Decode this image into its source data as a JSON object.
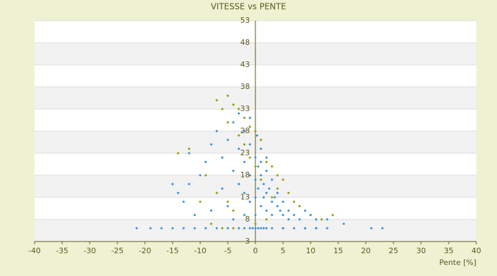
{
  "chart_data": {
    "type": "scatter",
    "title": "VITESSE vs PENTE",
    "x_label": "Pente [%]",
    "xlim": [
      -40,
      40
    ],
    "xticks": [
      -40,
      -35,
      -30,
      -25,
      -20,
      -15,
      -10,
      -5,
      0,
      5,
      10,
      15,
      20,
      25,
      30,
      35,
      40
    ],
    "ylim": [
      3,
      53
    ],
    "yticks": [
      3,
      8,
      13,
      18,
      23,
      28,
      33,
      38,
      43,
      48,
      53
    ],
    "grid": true,
    "alternating_bands": true,
    "series": [
      {
        "color": "#999900",
        "x": [
          -7,
          -6,
          -5,
          -4,
          -3,
          -2,
          -1,
          0,
          -3,
          -5,
          -14,
          -12,
          -9,
          -7,
          -5,
          -4,
          -3,
          -1,
          1,
          2,
          3,
          4,
          5,
          6,
          4,
          3,
          7,
          8,
          10,
          12,
          14,
          -10,
          -8,
          -6,
          -4,
          0,
          2,
          5,
          9,
          11,
          0,
          1,
          -2
        ],
        "y": [
          35,
          33,
          36,
          34,
          33,
          31,
          29,
          28,
          27,
          30,
          23,
          24,
          18,
          14,
          12,
          10,
          16,
          22,
          26,
          21,
          20,
          18,
          17,
          14,
          15,
          13,
          12,
          11,
          9,
          8,
          9,
          12,
          7,
          6,
          6,
          7,
          8,
          6,
          6,
          6,
          20,
          17,
          25
        ]
      },
      {
        "color": "#3a8fd9",
        "x": [
          -21.5,
          -19,
          -17,
          -15,
          -13,
          -11,
          -9,
          -7,
          -5,
          -3,
          -2,
          -1,
          -0.5,
          0,
          0.5,
          1,
          1.5,
          2,
          3,
          5,
          7,
          9,
          11,
          13,
          16,
          21,
          23,
          -14,
          -13,
          -12,
          -10,
          -9,
          -8,
          -7,
          -6,
          -5,
          -4,
          -3,
          -3,
          -2,
          -2,
          -1,
          -1,
          -1,
          0,
          0,
          0,
          0,
          0.5,
          0.5,
          1,
          1,
          1,
          1.5,
          1.5,
          2,
          2,
          2,
          2.5,
          3,
          3,
          3,
          3.5,
          4,
          4,
          4.5,
          5,
          5,
          6,
          6,
          7,
          8,
          9,
          10,
          11,
          13,
          -11,
          -8,
          -6,
          -5,
          -4,
          -2,
          -15,
          -12,
          -4,
          -2,
          0.3,
          1,
          2,
          -1,
          -3
        ],
        "y": [
          6,
          6,
          6,
          6,
          6,
          6,
          6,
          6,
          6,
          6,
          6,
          6,
          6,
          6,
          6,
          6,
          6,
          6,
          6,
          6,
          6,
          6,
          6,
          6,
          7,
          6,
          6,
          14,
          12,
          16,
          18,
          21,
          25,
          28,
          22,
          26,
          19,
          24,
          16,
          21,
          14,
          25,
          18,
          12,
          22,
          17,
          13,
          9,
          20,
          15,
          24,
          18,
          11,
          16,
          13,
          19,
          14,
          10,
          15,
          17,
          12,
          9,
          13,
          14,
          11,
          10,
          12,
          9,
          10,
          8,
          9,
          8,
          10,
          9,
          8,
          8,
          9,
          10,
          15,
          11,
          8,
          9,
          16,
          23,
          30,
          28,
          27,
          21,
          22,
          31,
          32
        ]
      }
    ]
  }
}
